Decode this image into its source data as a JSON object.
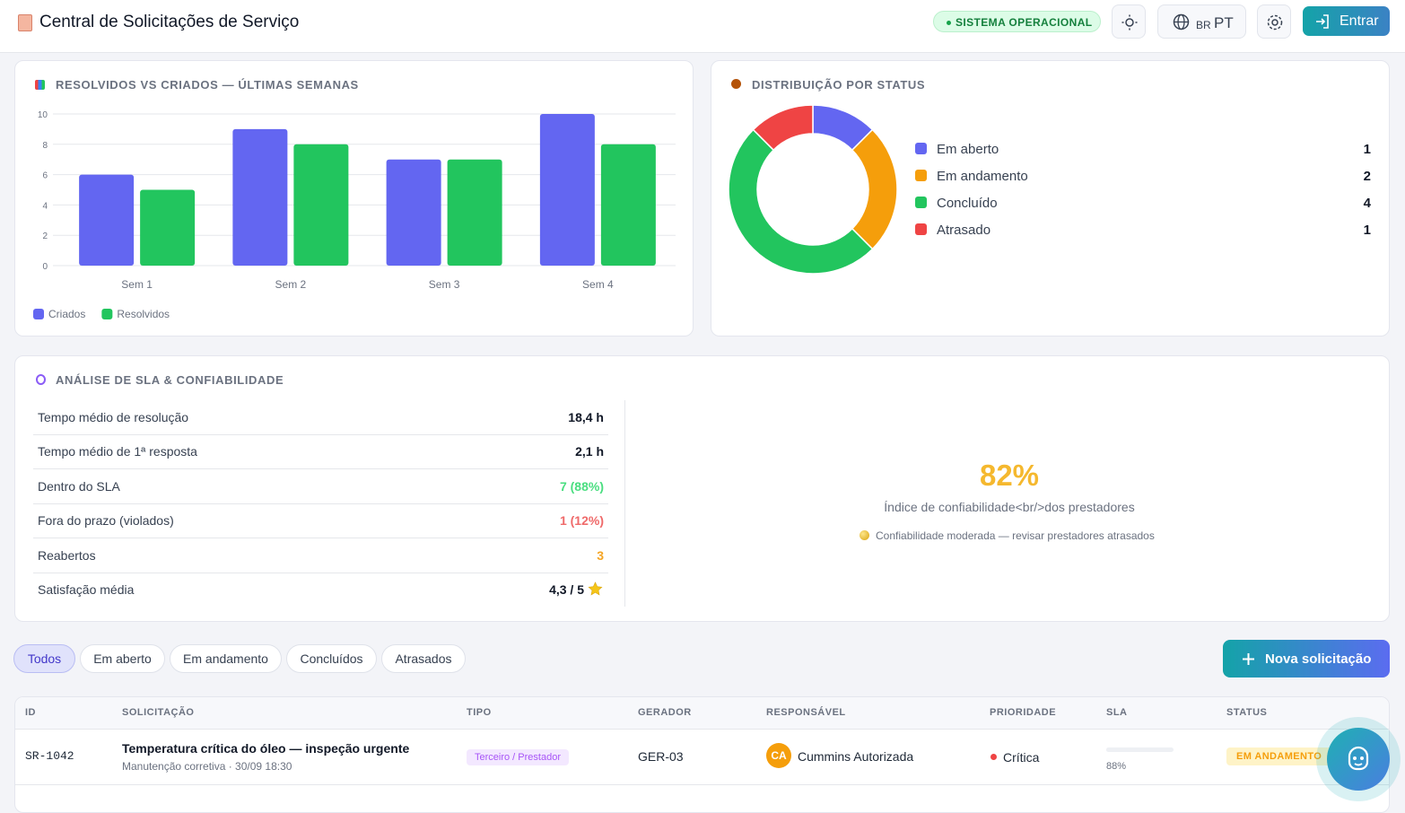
{
  "header": {
    "title": "Central de Solicitações de Serviço",
    "status": "SISTEMA OPERACIONAL",
    "lang_flag": "BR",
    "lang": "PT",
    "login": "Entrar"
  },
  "chart_data": [
    {
      "type": "bar",
      "title": "RESOLVIDOS VS CRIADOS — ÚLTIMAS SEMANAS",
      "categories": [
        "Sem 1",
        "Sem 2",
        "Sem 3",
        "Sem 4"
      ],
      "series": [
        {
          "name": "Criados",
          "color": "#6366f1",
          "values": [
            6,
            9,
            7,
            10
          ]
        },
        {
          "name": "Resolvidos",
          "color": "#22c55e",
          "values": [
            5,
            8,
            7,
            8
          ]
        }
      ],
      "ylim": [
        0,
        10
      ],
      "yticks": [
        0,
        2,
        4,
        6,
        8,
        10
      ],
      "grid": true,
      "legend": "bottom-left"
    },
    {
      "type": "donut",
      "title": "DISTRIBUIÇÃO POR STATUS",
      "categories": [
        "Em aberto",
        "Em andamento",
        "Concluído",
        "Atrasado"
      ],
      "values": [
        1,
        2,
        4,
        1
      ],
      "colors": [
        "#6366f1",
        "#f59e0b",
        "#22c55e",
        "#ef4444"
      ],
      "legend": "right"
    }
  ],
  "sla": {
    "title": "ANÁLISE DE SLA & CONFIABILIDADE",
    "rows": [
      {
        "label": "Tempo médio de resolução",
        "value": "18,4 h"
      },
      {
        "label": "Tempo médio de 1ª resposta",
        "value": "2,1 h"
      },
      {
        "label": "Dentro do SLA",
        "value": "7 (88%)"
      },
      {
        "label": "Fora do prazo (violados)",
        "value": "1 (12%)"
      },
      {
        "label": "Reabertos",
        "value": "3"
      },
      {
        "label": "Satisfação média",
        "value": "4,3 / 5"
      }
    ],
    "score": "82%",
    "score_label": "Índice de confiabilidade<br/>dos prestadores",
    "note": "Confiabilidade moderada — revisar prestadores atrasados"
  },
  "filters": [
    "Todos",
    "Em aberto",
    "Em andamento",
    "Concluídos",
    "Atrasados"
  ],
  "new_button": "Nova solicitação",
  "table": {
    "columns": [
      "ID",
      "SOLICITAÇÃO",
      "TIPO",
      "GERADOR",
      "RESPONSÁVEL",
      "PRIORIDADE",
      "SLA",
      "STATUS"
    ],
    "rows": [
      {
        "id": "SR-1042",
        "title": "Temperatura crítica do óleo — inspeção urgente",
        "subtitle": "Manutenção corretiva · 30/09 18:30",
        "type": "Terceiro / Prestador",
        "generator": "GER-03",
        "avatar": "CA",
        "owner": "Cummins Autorizada",
        "priority": "Crítica",
        "sla": {
          "value": 88,
          "label": "88%"
        },
        "status": "EM ANDAMENTO"
      }
    ]
  }
}
